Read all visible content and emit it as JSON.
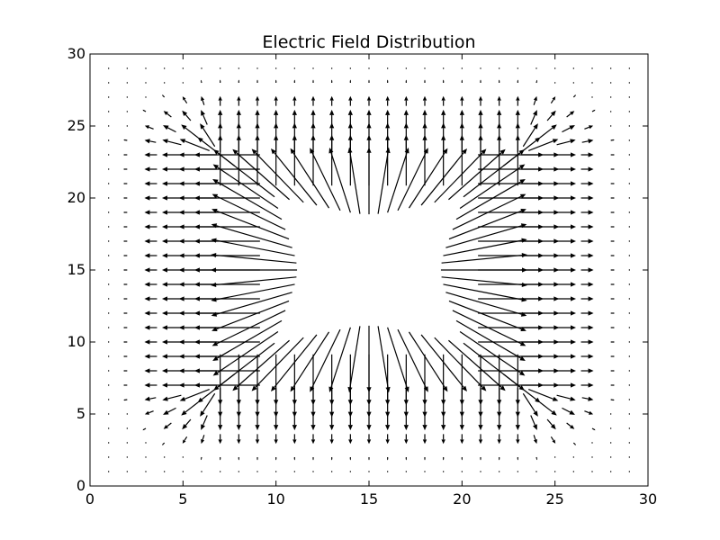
{
  "chart_data": {
    "type": "quiver",
    "title": "Electric Field Distribution",
    "xlabel": "",
    "ylabel": "",
    "xlim": [
      0,
      30
    ],
    "ylim": [
      0,
      30
    ],
    "xticks": [
      0,
      5,
      10,
      15,
      20,
      25,
      30
    ],
    "yticks": [
      0,
      5,
      10,
      15,
      20,
      25,
      30
    ],
    "grid": false,
    "grid_spacing": 1,
    "source_region": {
      "x": [
        7,
        23
      ],
      "y": [
        7,
        23
      ]
    },
    "field_model": "outward-from-square-source-region, magnitude decaying with distance from boundary, arrows end near boundary of region",
    "arrow_color": "#000000"
  }
}
